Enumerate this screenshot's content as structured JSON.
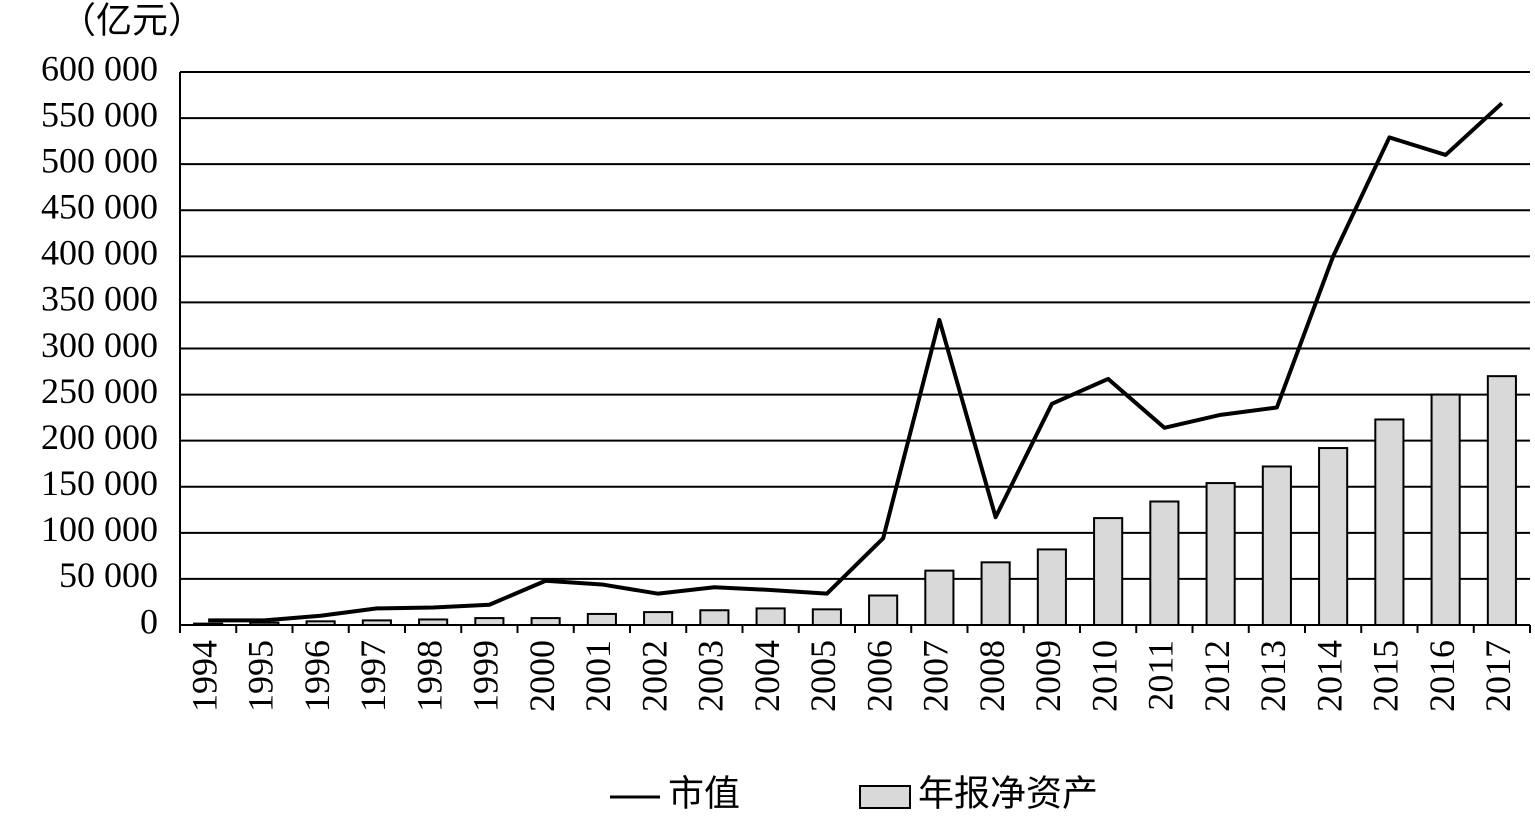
{
  "chart_data": {
    "type": "bar",
    "unit_label": "（亿元）",
    "categories": [
      "1994",
      "1995",
      "1996",
      "1997",
      "1998",
      "1999",
      "2000",
      "2001",
      "2002",
      "2003",
      "2004",
      "2005",
      "2006",
      "2007",
      "2008",
      "2009",
      "2010",
      "2011",
      "2012",
      "2013",
      "2014",
      "2015",
      "2016",
      "2017"
    ],
    "series": [
      {
        "name": "市值",
        "type": "line",
        "color": "#000000",
        "values": [
          5000,
          5000,
          10000,
          18000,
          19000,
          22000,
          48000,
          44000,
          34000,
          41000,
          38000,
          34000,
          94000,
          331000,
          117000,
          240000,
          267000,
          214000,
          228000,
          236000,
          400000,
          529000,
          510000,
          566000
        ]
      },
      {
        "name": "年报净资产",
        "type": "bar",
        "color": "#d9d9d9",
        "values": [
          1500,
          2500,
          4000,
          5000,
          6000,
          7500,
          7500,
          12000,
          14000,
          16000,
          18000,
          17000,
          32000,
          59000,
          68000,
          82000,
          116000,
          134000,
          154000,
          172000,
          192000,
          223000,
          250000,
          270000
        ]
      }
    ],
    "ylim": [
      0,
      600000
    ],
    "yticks": [
      0,
      {
        "value": 50000,
        "label": "50 000"
      },
      {
        "value": 100000,
        "label": "100 000"
      },
      {
        "value": 150000,
        "label": "150 000"
      },
      {
        "value": 200000,
        "label": "200 000"
      },
      {
        "value": 250000,
        "label": "250 000"
      },
      {
        "value": 300000,
        "label": "300 000"
      },
      {
        "value": 350000,
        "label": "350 000"
      },
      {
        "value": 400000,
        "label": "400 000"
      },
      {
        "value": 450000,
        "label": "450 000"
      },
      {
        "value": 500000,
        "label": "500 000"
      },
      {
        "value": 550000,
        "label": "550 000"
      },
      {
        "value": 600000,
        "label": "600 000"
      }
    ],
    "grid": true
  }
}
